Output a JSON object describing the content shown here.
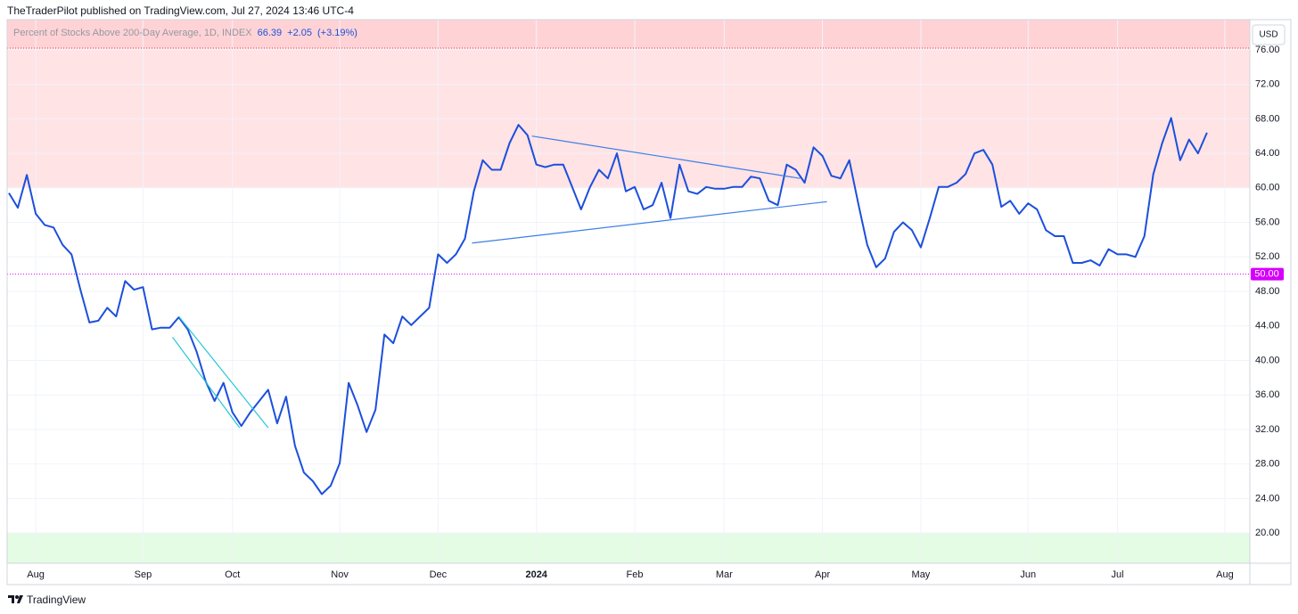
{
  "header": "TheTraderPilot published on TradingView.com, Jul 27, 2024 13:46 UTC-4",
  "footer": "TradingView",
  "currency": "USD",
  "chart_data": {
    "type": "line",
    "title": "Percent of Stocks Above 200-Day Average, 1D, INDEX",
    "last": "66.39",
    "change": "+2.05",
    "change_pct": "(+3.19%)",
    "categories": [
      null,
      null,
      null,
      "Aug",
      null,
      null,
      null,
      null,
      null,
      null,
      null,
      null,
      null,
      null,
      null,
      "Sep",
      null,
      null,
      null,
      null,
      null,
      null,
      null,
      null,
      null,
      "Oct",
      null,
      null,
      null,
      null,
      null,
      null,
      null,
      null,
      null,
      null,
      null,
      "Nov",
      null,
      null,
      null,
      null,
      null,
      null,
      null,
      null,
      null,
      null,
      "Dec",
      null,
      null,
      null,
      null,
      null,
      null,
      null,
      null,
      null,
      null,
      "2024",
      null,
      null,
      null,
      null,
      null,
      null,
      null,
      null,
      null,
      null,
      "Feb",
      null,
      null,
      null,
      null,
      null,
      null,
      null,
      null,
      null,
      "Mar",
      null,
      null,
      null,
      null,
      null,
      null,
      null,
      null,
      null,
      null,
      "Apr",
      null,
      null,
      null,
      null,
      null,
      null,
      null,
      null,
      null,
      null,
      "May",
      null,
      null,
      null,
      null,
      null,
      null,
      null,
      null,
      null,
      null,
      null,
      "Jun",
      null,
      null,
      null,
      null,
      null,
      null,
      null,
      null,
      null,
      "Jul",
      null,
      null,
      null,
      null,
      null,
      null,
      null,
      null,
      null,
      null,
      null,
      "Aug",
      null,
      null
    ],
    "series": [
      {
        "name": "Percent of Stocks Above 200-Day Average",
        "color": "#1c4fdc",
        "values": [
          59.4,
          57.7,
          61.5,
          57.0,
          55.7,
          55.4,
          53.4,
          52.3,
          48.2,
          44.4,
          44.6,
          46.1,
          45.1,
          49.2,
          48.2,
          48.5,
          43.6,
          43.8,
          43.8,
          45.0,
          43.6,
          41.0,
          37.6,
          35.3,
          37.4,
          34.0,
          32.4,
          34.0,
          35.3,
          36.6,
          32.7,
          35.8,
          30.1,
          27.0,
          26.0,
          24.5,
          25.5,
          28.1,
          37.4,
          34.8,
          31.7,
          34.3,
          43.0,
          42.0,
          45.1,
          44.1,
          45.1,
          46.1,
          52.3,
          51.3,
          52.3,
          54.1,
          59.6,
          63.2,
          62.1,
          62.1,
          65.2,
          67.3,
          66.1,
          62.7,
          62.4,
          62.7,
          62.7,
          60.1,
          57.5,
          60.1,
          62.1,
          61.1,
          64.0,
          59.6,
          60.1,
          57.5,
          58.0,
          60.6,
          56.5,
          62.7,
          59.6,
          59.3,
          60.1,
          59.9,
          59.9,
          60.1,
          60.1,
          61.3,
          61.1,
          58.5,
          58.0,
          62.7,
          62.1,
          60.6,
          64.7,
          63.7,
          61.4,
          61.1,
          63.2,
          58.2,
          53.4,
          50.8,
          51.8,
          54.9,
          56.0,
          55.1,
          53.1,
          56.5,
          60.1,
          60.1,
          60.6,
          61.6,
          64.0,
          64.4,
          62.7,
          57.8,
          58.5,
          57.0,
          58.2,
          57.5,
          55.1,
          54.4,
          54.4,
          51.3,
          51.3,
          51.6,
          51.0,
          52.9,
          52.3,
          52.3,
          52.0,
          54.4,
          61.6,
          65.2,
          68.1,
          63.2,
          65.6,
          64.0,
          66.39,
          null,
          null,
          null,
          null
        ]
      }
    ],
    "ylim": [
      16.5,
      79.5
    ],
    "yticks": [
      {
        "value": 20,
        "label": "20.00"
      },
      {
        "value": 24,
        "label": "24.00"
      },
      {
        "value": 28,
        "label": "28.00"
      },
      {
        "value": 32,
        "label": "32.00"
      },
      {
        "value": 36,
        "label": "36.00"
      },
      {
        "value": 40,
        "label": "40.00"
      },
      {
        "value": 44,
        "label": "44.00"
      },
      {
        "value": 48,
        "label": "48.00"
      },
      {
        "value": 52,
        "label": "52.00"
      },
      {
        "value": 56,
        "label": "56.00"
      },
      {
        "value": 60,
        "label": "60.00"
      },
      {
        "value": 64,
        "label": "64.00"
      },
      {
        "value": 68,
        "label": "68.00"
      },
      {
        "value": 72,
        "label": "72.00"
      },
      {
        "value": 76,
        "label": "76.00"
      }
    ],
    "grid": true,
    "bands": [
      {
        "from": 60,
        "to": 76.2,
        "color": "#ffe3e5"
      },
      {
        "from": 76.2,
        "to": 79.5,
        "color": "#ffd3d6"
      },
      {
        "from": 16.5,
        "to": 20,
        "color": "#e4fce4"
      }
    ],
    "hlines": [
      {
        "value": 50,
        "label": "50.00",
        "color": "#d500f9"
      },
      {
        "value": 76.2,
        "color": "#f23645"
      }
    ],
    "trendlines": [
      {
        "color": "#26c6da",
        "x": [
          19,
          29
        ],
        "y": [
          45.1,
          32.2
        ]
      },
      {
        "color": "#26c6da",
        "x": [
          18.3,
          25.8
        ],
        "y": [
          42.7,
          32.2
        ]
      },
      {
        "color": "#3d7ee6",
        "x": [
          58.5,
          88.5
        ],
        "y": [
          66.0,
          61.1
        ]
      },
      {
        "color": "#3d7ee6",
        "x": [
          51.8,
          91.5
        ],
        "y": [
          53.6,
          58.4
        ]
      }
    ]
  }
}
